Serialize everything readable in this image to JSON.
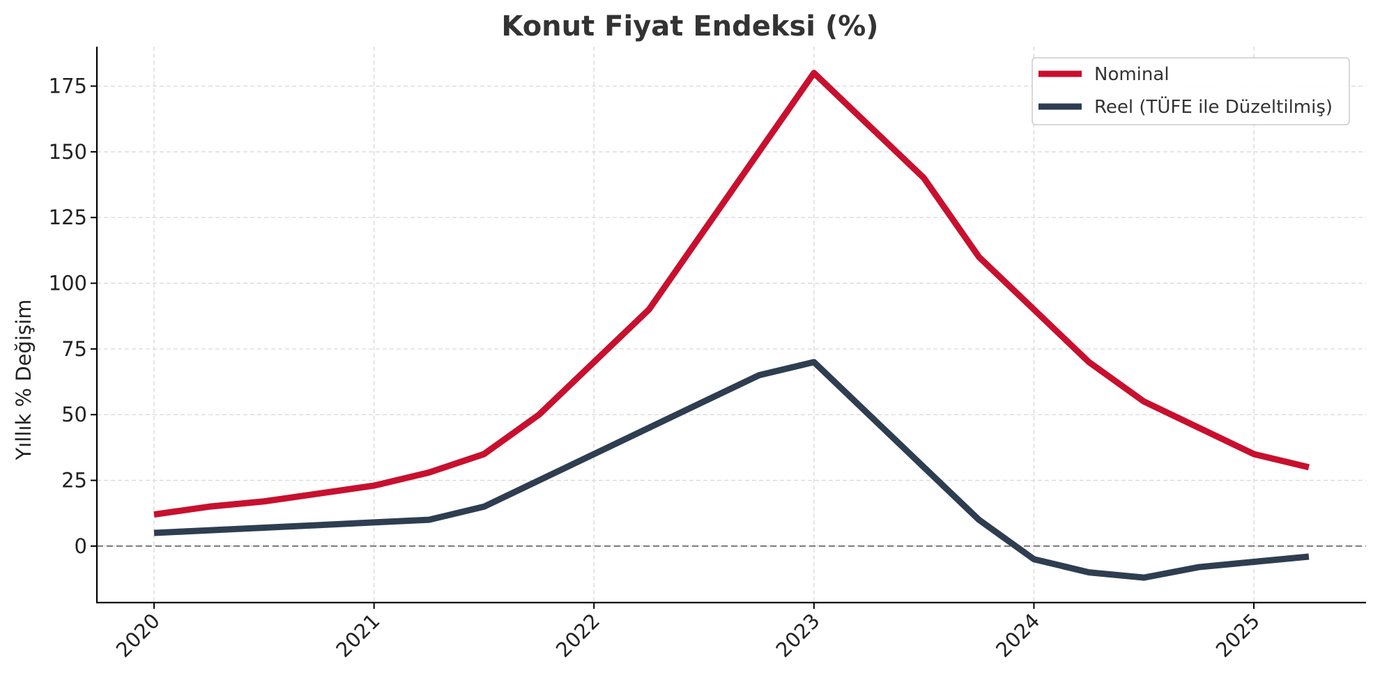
{
  "chart_data": {
    "type": "line",
    "title": "Konut Fiyat Endeksi (%)",
    "xlabel": "",
    "ylabel": "Yıllık % Değişim",
    "x": [
      2020.0,
      2020.25,
      2020.5,
      2020.75,
      2021.0,
      2021.25,
      2021.5,
      2021.75,
      2022.0,
      2022.25,
      2022.5,
      2022.75,
      2023.0,
      2023.25,
      2023.5,
      2023.75,
      2024.0,
      2024.25,
      2024.5,
      2024.75,
      2025.0,
      2025.25
    ],
    "series": [
      {
        "name": "Nominal",
        "color": "#c8102e",
        "values": [
          12,
          15,
          17,
          20,
          23,
          28,
          35,
          50,
          70,
          90,
          120,
          150,
          180,
          160,
          140,
          110,
          90,
          70,
          55,
          45,
          35,
          30
        ]
      },
      {
        "name": "Reel (TÜFE ile Düzeltilmiş)",
        "color": "#2e3e50",
        "values": [
          5,
          6,
          7,
          8,
          9,
          10,
          15,
          25,
          35,
          45,
          55,
          65,
          70,
          50,
          30,
          10,
          -5,
          -10,
          -12,
          -8,
          -6,
          -4
        ]
      }
    ],
    "xticks": [
      2020,
      2021,
      2022,
      2023,
      2024,
      2025
    ],
    "xtick_labels": [
      "2020",
      "2021",
      "2022",
      "2023",
      "2024",
      "2025"
    ],
    "yticks": [
      0,
      25,
      50,
      75,
      100,
      125,
      150,
      175
    ],
    "ytick_labels": [
      "0",
      "25",
      "50",
      "75",
      "100",
      "125",
      "150",
      "175"
    ],
    "xlim": [
      2019.74,
      2025.51
    ],
    "ylim": [
      -21.5,
      190
    ],
    "grid": true,
    "zero_line": true,
    "legend_position": "top-right"
  }
}
